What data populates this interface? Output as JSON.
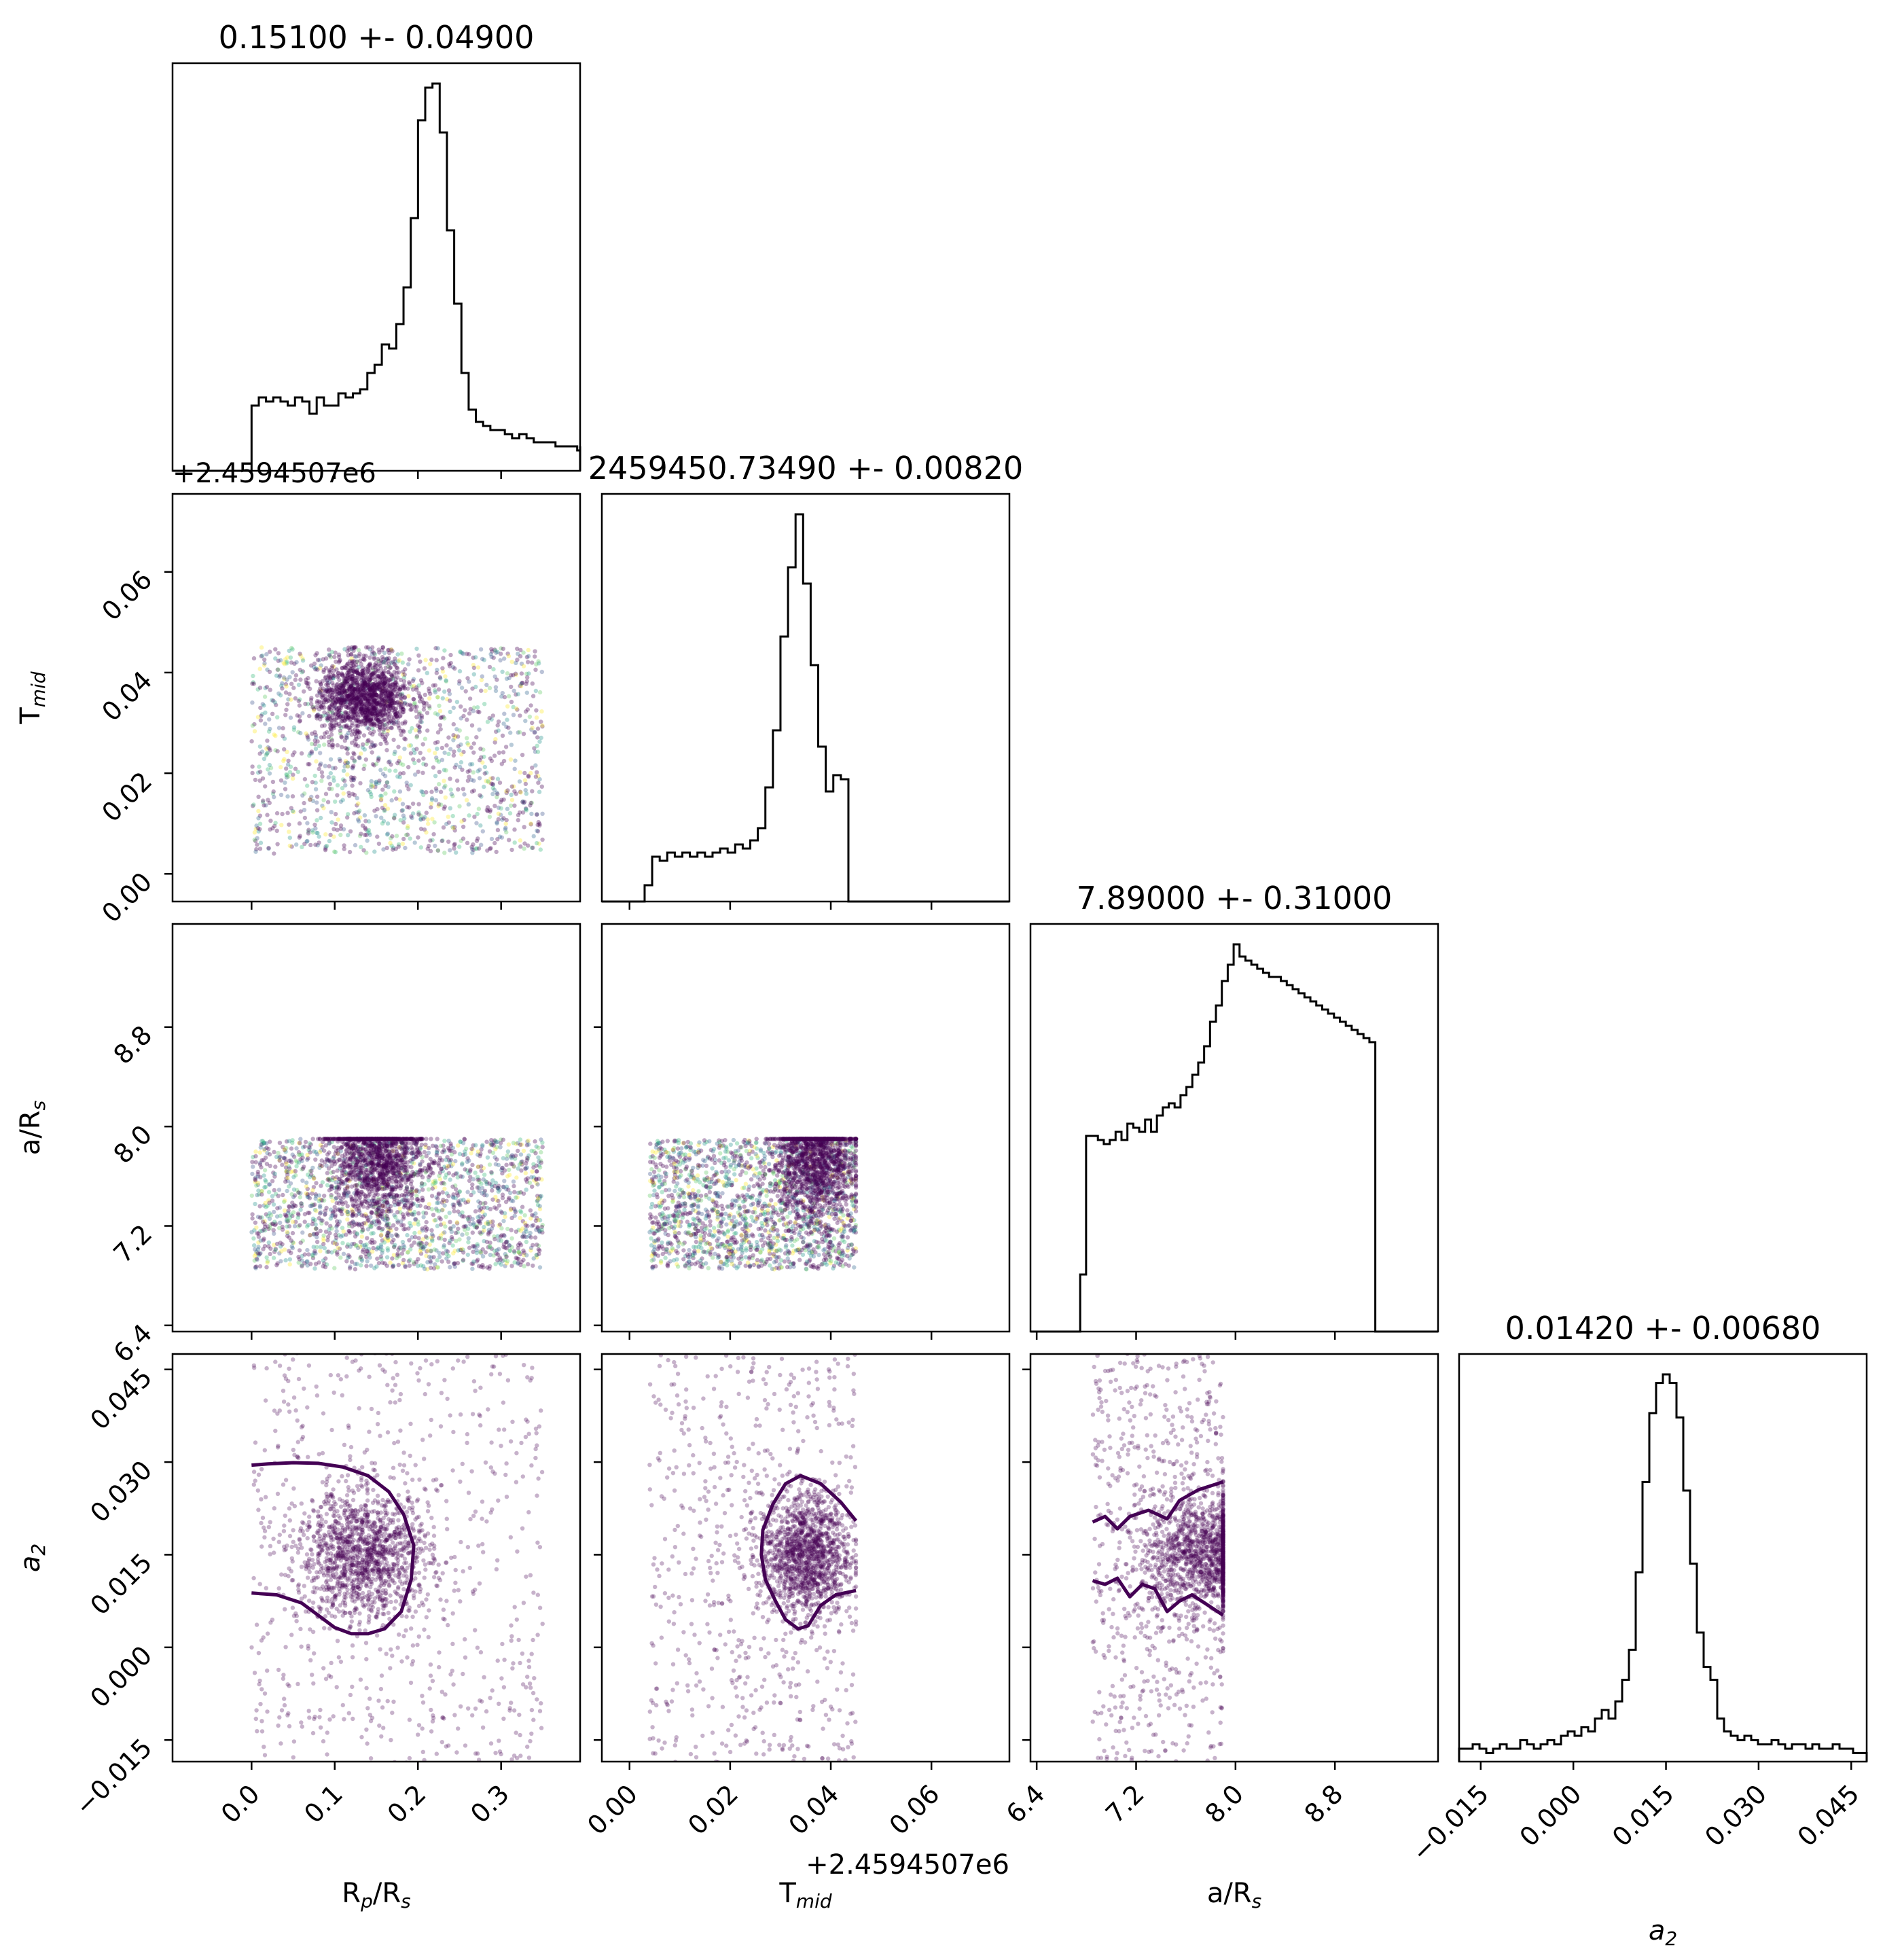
{
  "chart_data": {
    "type": "corner",
    "parameters": [
      {
        "key": "rp",
        "xlabel": "R",
        "xlabel_sub": "p",
        "xlabel_rest": "/R",
        "xlabel_sub2": "s",
        "title": "0.15100 +- 0.04900",
        "range": [
          -0.095,
          0.395
        ],
        "ticks": [
          0.0,
          0.1,
          0.2,
          0.3
        ],
        "tick_labels": [
          "0.0",
          "0.1",
          "0.2",
          "0.3"
        ],
        "hist": {
          "edges_start": 0.0,
          "bin_width": 0.0087,
          "counts": [
            0.16,
            0.18,
            0.17,
            0.18,
            0.17,
            0.16,
            0.18,
            0.17,
            0.14,
            0.18,
            0.16,
            0.16,
            0.19,
            0.18,
            0.19,
            0.2,
            0.24,
            0.26,
            0.31,
            0.3,
            0.36,
            0.45,
            0.62,
            0.86,
            0.94,
            0.95,
            0.83,
            0.59,
            0.41,
            0.24,
            0.15,
            0.12,
            0.11,
            0.1,
            0.1,
            0.09,
            0.08,
            0.09,
            0.08,
            0.07,
            0.07,
            0.07,
            0.06,
            0.06,
            0.06,
            0.05,
            0.06,
            0.05,
            0.05,
            0.06,
            0.05,
            0.05,
            0.05,
            0.04,
            0.04,
            0.03,
            0.02,
            0.0,
            0.0,
            0.0
          ]
        }
      },
      {
        "key": "tmid",
        "xlabel": "T",
        "xlabel_sub": "mid",
        "title": "2459450.73490 +- 0.00820",
        "offset": "+2.4594507e6",
        "range": [
          -0.0055,
          0.0755
        ],
        "ticks": [
          0.0,
          0.02,
          0.04,
          0.06
        ],
        "tick_labels": [
          "0.00",
          "0.02",
          "0.04",
          "0.06"
        ],
        "hist": {
          "edges_start": 0.0,
          "bin_width": 0.0015,
          "counts": [
            0.0,
            0.0,
            0.04,
            0.11,
            0.1,
            0.12,
            0.11,
            0.12,
            0.11,
            0.12,
            0.11,
            0.12,
            0.13,
            0.12,
            0.14,
            0.13,
            0.15,
            0.18,
            0.28,
            0.42,
            0.65,
            0.82,
            0.95,
            0.78,
            0.58,
            0.38,
            0.27,
            0.31,
            0.3,
            0.0,
            0.0,
            0.0,
            0.0,
            0.0,
            0.0,
            0.0,
            0.0,
            0.0,
            0.0,
            0.0,
            0.0,
            0.0,
            0.0,
            0.0,
            0.0,
            0.0,
            0.0,
            0.0,
            0.0,
            0.0
          ]
        }
      },
      {
        "key": "ars",
        "xlabel": "a/R",
        "xlabel_sub": "s",
        "title": "7.89000 +- 0.31000",
        "range": [
          6.35,
          9.63
        ],
        "ticks": [
          6.4,
          7.2,
          8.0,
          8.8
        ],
        "tick_labels": [
          "6.4",
          "7.2",
          "8.0",
          "8.8"
        ],
        "hist": {
          "edges_start": 6.75,
          "bin_width": 0.0475,
          "counts": [
            0.14,
            0.48,
            0.48,
            0.47,
            0.46,
            0.47,
            0.49,
            0.47,
            0.51,
            0.5,
            0.49,
            0.52,
            0.49,
            0.53,
            0.55,
            0.56,
            0.55,
            0.58,
            0.6,
            0.63,
            0.66,
            0.7,
            0.76,
            0.8,
            0.86,
            0.9,
            0.95,
            0.92,
            0.91,
            0.9,
            0.89,
            0.88,
            0.87,
            0.87,
            0.86,
            0.85,
            0.84,
            0.83,
            0.82,
            0.81,
            0.8,
            0.79,
            0.78,
            0.77,
            0.76,
            0.75,
            0.74,
            0.73,
            0.72,
            0.71
          ]
        }
      },
      {
        "key": "a2",
        "xlabel": "a",
        "xlabel_sub": "2",
        "title": "0.01420 +- 0.00680",
        "range": [
          -0.0185,
          0.0475
        ],
        "ticks": [
          -0.015,
          0.0,
          0.015,
          0.03,
          0.045
        ],
        "tick_labels": [
          "−0.015",
          "0.000",
          "0.015",
          "0.030",
          "0.045"
        ],
        "hist": {
          "edges_start": -0.0185,
          "bin_width": 0.0011,
          "counts": [
            0.03,
            0.03,
            0.04,
            0.03,
            0.02,
            0.03,
            0.04,
            0.03,
            0.03,
            0.05,
            0.04,
            0.03,
            0.04,
            0.05,
            0.04,
            0.06,
            0.07,
            0.06,
            0.08,
            0.07,
            0.1,
            0.12,
            0.1,
            0.14,
            0.19,
            0.26,
            0.44,
            0.65,
            0.81,
            0.88,
            0.9,
            0.88,
            0.8,
            0.63,
            0.46,
            0.3,
            0.22,
            0.19,
            0.1,
            0.07,
            0.06,
            0.05,
            0.06,
            0.05,
            0.04,
            0.04,
            0.05,
            0.04,
            0.03,
            0.04,
            0.04,
            0.03,
            0.04,
            0.03,
            0.03,
            0.04,
            0.03,
            0.03,
            0.02,
            0.02
          ]
        }
      }
    ],
    "ylabels": {
      "tmid": {
        "text": "T",
        "sub": "mid"
      },
      "ars": {
        "text": "a/R",
        "sub": "s"
      },
      "a2": {
        "text": "a",
        "sub": "2"
      }
    },
    "y_offsets": {
      "tmid": "+2.4594507e6"
    },
    "scatter_clusters": {
      "tmid|rp": {
        "x_uniform": [
          0.0,
          0.35
        ],
        "y_uniform": [
          0.004,
          0.045
        ],
        "core": {
          "cx": 0.135,
          "cy": 0.035,
          "sx": 0.028,
          "sy": 0.004
        },
        "n_uniform": 1300,
        "n_core": 1300,
        "colorful": true
      },
      "ars|rp": {
        "x_uniform": [
          0.0,
          0.35
        ],
        "y_uniform": [
          6.85,
          7.9
        ],
        "core": {
          "cx": 0.15,
          "cy": 7.75,
          "sx": 0.028,
          "sy": 0.25
        },
        "n_uniform": 1700,
        "n_core": 1300,
        "colorful": true
      },
      "ars|tmid": {
        "x_uniform": [
          0.004,
          0.045
        ],
        "y_uniform": [
          6.85,
          7.9
        ],
        "core": {
          "cx": 0.037,
          "cy": 7.75,
          "sx": 0.004,
          "sy": 0.25
        },
        "n_uniform": 1700,
        "n_core": 1300,
        "colorful": true
      },
      "a2|rp": {
        "x_uniform": [
          0.0,
          0.35
        ],
        "y_uniform": [
          -0.02,
          0.05
        ],
        "core": {
          "cx": 0.135,
          "cy": 0.015,
          "sx": 0.04,
          "sy": 0.005
        },
        "n_uniform": 650,
        "n_core": 1300,
        "colorful": false
      },
      "a2|tmid": {
        "x_uniform": [
          0.004,
          0.045
        ],
        "y_uniform": [
          -0.02,
          0.05
        ],
        "core": {
          "cx": 0.035,
          "cy": 0.015,
          "sx": 0.0045,
          "sy": 0.005
        },
        "n_uniform": 650,
        "n_core": 1300,
        "colorful": false
      },
      "a2|ars": {
        "x_uniform": [
          6.85,
          7.9
        ],
        "y_uniform": [
          -0.02,
          0.05
        ],
        "core": {
          "cx": 7.75,
          "cy": 0.015,
          "sx": 0.25,
          "sy": 0.005
        },
        "n_uniform": 650,
        "n_core": 1300,
        "colorful": false
      }
    },
    "contours": {
      "a2|rp": [
        [
          [
            0.0,
            0.0295
          ],
          [
            0.02,
            0.0297
          ],
          [
            0.05,
            0.0299
          ],
          [
            0.08,
            0.0298
          ],
          [
            0.11,
            0.0292
          ],
          [
            0.14,
            0.0278
          ],
          [
            0.165,
            0.0252
          ],
          [
            0.183,
            0.0215
          ],
          [
            0.195,
            0.0165
          ],
          [
            0.192,
            0.011
          ],
          [
            0.18,
            0.0058
          ],
          [
            0.16,
            0.003
          ],
          [
            0.14,
            0.0022
          ],
          [
            0.12,
            0.0022
          ],
          [
            0.1,
            0.0032
          ],
          [
            0.08,
            0.0052
          ],
          [
            0.06,
            0.0072
          ],
          [
            0.03,
            0.0085
          ],
          [
            0.0,
            0.0088
          ]
        ]
      ],
      "a2|tmid": [
        [
          [
            0.045,
            0.0205
          ],
          [
            0.042,
            0.0235
          ],
          [
            0.038,
            0.0265
          ],
          [
            0.034,
            0.0278
          ],
          [
            0.031,
            0.0265
          ],
          [
            0.0285,
            0.0232
          ],
          [
            0.0265,
            0.019
          ],
          [
            0.0262,
            0.015
          ],
          [
            0.027,
            0.011
          ],
          [
            0.029,
            0.0075
          ],
          [
            0.031,
            0.0045
          ],
          [
            0.0335,
            0.003
          ],
          [
            0.0355,
            0.0035
          ],
          [
            0.038,
            0.0068
          ],
          [
            0.041,
            0.0085
          ],
          [
            0.045,
            0.0092
          ]
        ]
      ],
      "a2|ars": [
        [
          [
            6.85,
            0.0203
          ],
          [
            6.95,
            0.0212
          ],
          [
            7.05,
            0.0192
          ],
          [
            7.15,
            0.0212
          ],
          [
            7.3,
            0.0222
          ],
          [
            7.45,
            0.0208
          ],
          [
            7.55,
            0.0238
          ],
          [
            7.7,
            0.0255
          ],
          [
            7.9,
            0.0268
          ]
        ],
        [
          [
            6.85,
            0.0108
          ],
          [
            6.95,
            0.0102
          ],
          [
            7.05,
            0.0112
          ],
          [
            7.15,
            0.0082
          ],
          [
            7.25,
            0.0102
          ],
          [
            7.35,
            0.0095
          ],
          [
            7.45,
            0.0058
          ],
          [
            7.55,
            0.0075
          ],
          [
            7.65,
            0.0085
          ],
          [
            7.75,
            0.0072
          ],
          [
            7.9,
            0.0052
          ]
        ]
      ]
    }
  }
}
